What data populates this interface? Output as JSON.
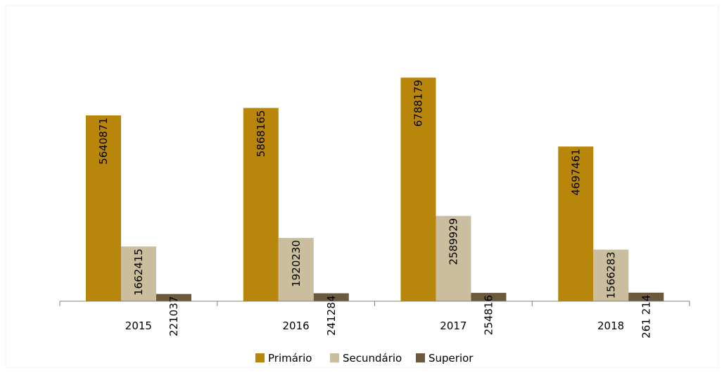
{
  "chart_data": {
    "type": "bar",
    "categories": [
      "2015",
      "2016",
      "2017",
      "2018"
    ],
    "series": [
      {
        "name": "Primário",
        "color": "#B8860B",
        "values": [
          5640871,
          5868165,
          6788179,
          4697461
        ],
        "labels": [
          "5640871",
          "5868165",
          "6788179",
          "4697461"
        ]
      },
      {
        "name": "Secundário",
        "color": "#CBBE9E",
        "values": [
          1662415,
          1920230,
          2589929,
          1566283
        ],
        "labels": [
          "1662415",
          "1920230",
          "2589929",
          "1566283"
        ]
      },
      {
        "name": "Superior",
        "color": "#6B5A3E",
        "values": [
          221037,
          241284,
          254816,
          261214
        ],
        "labels": [
          "221037",
          "241284",
          "254816",
          "261 214"
        ]
      }
    ],
    "ylim": [
      0,
      7000000
    ],
    "grid": false,
    "legend_position": "bottom"
  }
}
